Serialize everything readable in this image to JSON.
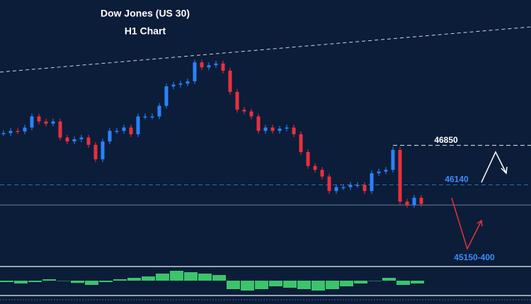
{
  "chart_data": [
    {
      "type": "candlestick",
      "title": "Dow Jones (US 30)",
      "subtitle": "H1 Chart",
      "values": [
        47070,
        47110,
        47100,
        47170,
        47370,
        47280,
        47240,
        47280,
        46990,
        46920,
        46960,
        46990,
        46860,
        46600,
        46920,
        47110,
        47110,
        47170,
        47050,
        47370,
        47370,
        47370,
        47560,
        47910,
        47940,
        47960,
        48000,
        48340,
        48250,
        48290,
        48320,
        48190,
        47810,
        47490,
        47460,
        47370,
        47110,
        47170,
        47110,
        47150,
        47170,
        47050,
        46730,
        46480,
        46410,
        46290,
        46030,
        46100,
        46100,
        46140,
        46140,
        46030,
        46350,
        46380,
        46410,
        46770,
        45840,
        45780,
        45910,
        45800
      ],
      "up_color": "#2b82ff",
      "down_color": "#e8303f",
      "ylim": [
        44700,
        49460
      ],
      "levels": [
        46850,
        46140
      ],
      "target_label": "45150-400"
    },
    {
      "type": "bar",
      "values": [
        -5,
        -10,
        -5,
        5,
        0,
        -8,
        -15,
        -5,
        5,
        10,
        15,
        25,
        35,
        30,
        25,
        20,
        -30,
        -35,
        -30,
        -20,
        -25,
        -30,
        -35,
        -30,
        -20,
        -10,
        0,
        10,
        -15,
        -10
      ],
      "color": "#3cc46a",
      "ylim": [
        -50,
        50
      ]
    }
  ]
}
